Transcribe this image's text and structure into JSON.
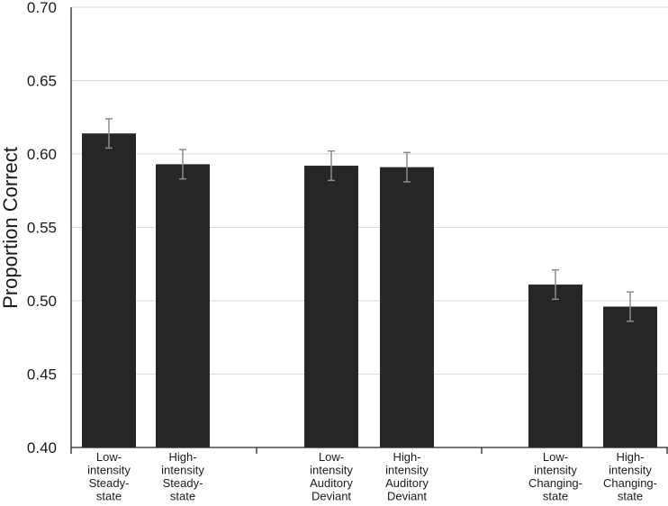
{
  "chart_data": {
    "type": "bar",
    "title": "",
    "xlabel": "",
    "ylabel": "Proportion Correct",
    "ylim": [
      0.4,
      0.7
    ],
    "yticks": [
      "0.40",
      "0.45",
      "0.50",
      "0.55",
      "0.60",
      "0.65",
      "0.70"
    ],
    "grid": true,
    "legend": "none",
    "bar_color": "#262626",
    "error_bar_color": "#8c8c8c",
    "categories": [
      [
        "Low-",
        "intensity",
        "Steady-",
        "state"
      ],
      [
        "High-",
        "intensity",
        "Steady-",
        "state"
      ],
      [
        "Low-",
        "intensity",
        "Auditory",
        "Deviant"
      ],
      [
        "High-",
        "intensity",
        "Auditory",
        "Deviant"
      ],
      [
        "Low-",
        "intensity",
        "Changing-",
        "state"
      ],
      [
        "High-",
        "intensity",
        "Changing-",
        "state"
      ]
    ],
    "groups": [
      [
        0,
        1
      ],
      [
        2,
        3
      ],
      [
        4,
        5
      ]
    ],
    "values": [
      0.614,
      0.593,
      0.592,
      0.591,
      0.511,
      0.496
    ],
    "errors": [
      0.01,
      0.01,
      0.01,
      0.01,
      0.01,
      0.01
    ]
  }
}
